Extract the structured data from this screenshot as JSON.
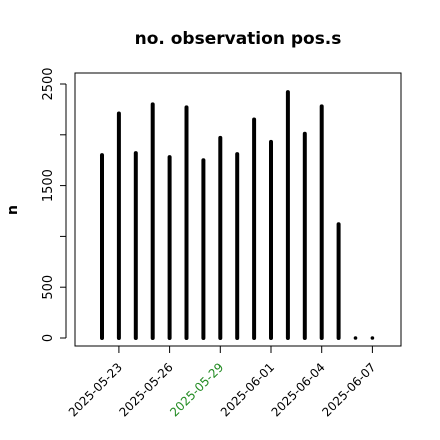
{
  "chart_data": {
    "type": "bar",
    "title": "no. observation pos.s",
    "xlabel": "",
    "ylabel": "n",
    "ylim": [
      0,
      2600
    ],
    "grid": false,
    "legend": "none",
    "x_start": "2025-05-22",
    "x_interval_days": 1,
    "values": [
      1800,
      2210,
      1820,
      2300,
      1780,
      2270,
      1750,
      1970,
      1810,
      2150,
      1930,
      2420,
      2010,
      2280,
      1120,
      0,
      0
    ],
    "yticks": [
      "0",
      "500",
      "1500",
      "2500"
    ],
    "ytick_values": [
      0,
      500,
      1500,
      2500
    ],
    "ytick_marks": [
      0,
      500,
      1000,
      1500,
      2000,
      2500
    ],
    "xticks": [
      {
        "label": "2025-05-23",
        "color": "#000000"
      },
      {
        "label": "2025-05-26",
        "color": "#000000"
      },
      {
        "label": "2025-05-29",
        "color": "#228B22"
      },
      {
        "label": "2025-06-01",
        "color": "#000000"
      },
      {
        "label": "2025-06-04",
        "color": "#000000"
      },
      {
        "label": "2025-06-07",
        "color": "#000000"
      }
    ],
    "bar_color": "#000000"
  }
}
